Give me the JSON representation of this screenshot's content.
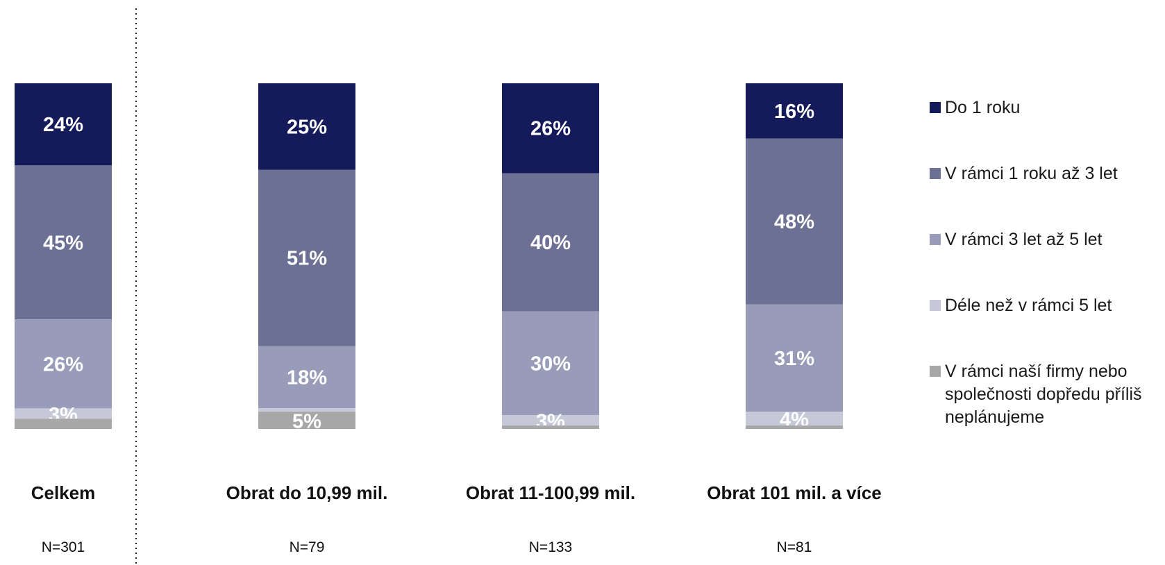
{
  "chart_data": {
    "type": "bar",
    "stacked": true,
    "normalized": true,
    "categories": [
      "Celkem",
      "Obrat do 10,99 mil.",
      "Obrat 11-100,99 mil.",
      "Obrat 101 mil. a více"
    ],
    "sample_sizes": [
      "N=301",
      "N=79",
      "N=133",
      "N=81"
    ],
    "series": [
      {
        "name": "Do 1 roku",
        "color": "#141a5a",
        "values": [
          24,
          25,
          26,
          16
        ]
      },
      {
        "name": "V rámci 1 roku až 3 let",
        "color": "#6b7094",
        "values": [
          45,
          51,
          40,
          48
        ]
      },
      {
        "name": "V rámci 3 let až 5 let",
        "color": "#999cb9",
        "values": [
          26,
          18,
          30,
          31
        ]
      },
      {
        "name": "Déle než v rámci 5 let",
        "color": "#c6c8d8",
        "values": [
          3,
          1,
          3,
          4
        ]
      },
      {
        "name": "V rámci naší firmy nebo společnosti dopředu příliš neplánujeme",
        "color": "#a7a7a7",
        "values": [
          3,
          5,
          1,
          1
        ]
      }
    ],
    "data_labels": [
      [
        "24%",
        "25%",
        "26%",
        "16%"
      ],
      [
        "45%",
        "51%",
        "40%",
        "48%"
      ],
      [
        "26%",
        "18%",
        "30%",
        "31%"
      ],
      [
        "3%",
        "",
        "3%",
        "4%"
      ],
      [
        "",
        "5%",
        "",
        ""
      ]
    ],
    "ylim": [
      0,
      100
    ],
    "legend_position": "right",
    "grid": false,
    "separator_after_first": true
  }
}
